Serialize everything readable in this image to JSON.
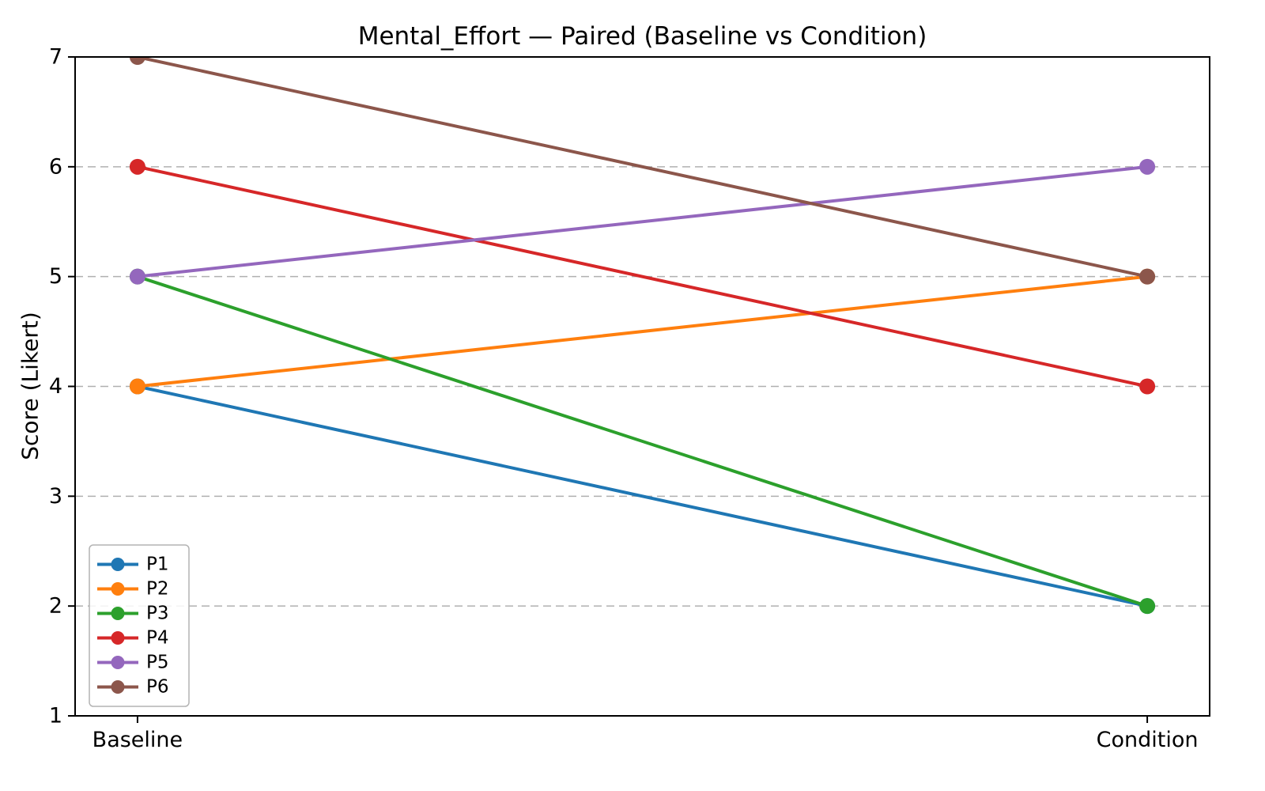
{
  "chart_data": {
    "type": "line",
    "subtype": "paired-slope",
    "title": "Mental_Effort — Paired (Baseline vs Condition)",
    "ylabel": "Score (Likert)",
    "xlabel": "",
    "categories": [
      "Baseline",
      "Condition"
    ],
    "series": [
      {
        "name": "P1",
        "values": [
          4,
          2
        ],
        "color": "#1f77b4"
      },
      {
        "name": "P2",
        "values": [
          4,
          5
        ],
        "color": "#ff7f0e"
      },
      {
        "name": "P3",
        "values": [
          5,
          2
        ],
        "color": "#2ca02c"
      },
      {
        "name": "P4",
        "values": [
          6,
          4
        ],
        "color": "#d62728"
      },
      {
        "name": "P5",
        "values": [
          5,
          6
        ],
        "color": "#9467bd"
      },
      {
        "name": "P6",
        "values": [
          7,
          5
        ],
        "color": "#8c564b"
      }
    ],
    "ylim": [
      1,
      7
    ],
    "yticks": [
      1,
      2,
      3,
      4,
      5,
      6,
      7
    ],
    "grid": "horizontal-dashed",
    "grid_color": "#b0b0b0",
    "legend_position": "lower-left",
    "marker": "circle",
    "background": "#ffffff"
  }
}
